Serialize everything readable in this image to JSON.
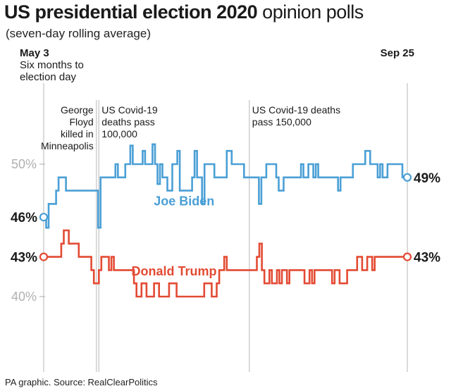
{
  "title": {
    "bold": "US presidential election 2020",
    "light": "opinion polls"
  },
  "subtitle": "(seven-day rolling average)",
  "source": "PA graphic. Source: RealClearPolitics",
  "colors": {
    "biden": "#4a9fd5",
    "trump": "#e34a33",
    "gridline": "#cfcfcf",
    "tick": "#aaaaaa"
  },
  "chart_data": {
    "type": "line",
    "x_domain": [
      0,
      145
    ],
    "ylim": [
      36,
      55
    ],
    "y_ticks": [
      {
        "value": 40,
        "label": "40%"
      },
      {
        "value": 50,
        "label": "50%"
      }
    ],
    "date_markers": [
      {
        "x": 0,
        "lines": [
          "May 3",
          "Six months to",
          "election day"
        ]
      },
      {
        "x": 145,
        "lines": [
          "Sep 25"
        ]
      }
    ],
    "annotations": [
      {
        "x": 21,
        "anchor": "end",
        "lines": [
          "George",
          "Floyd",
          "killed in",
          "Minneapolis"
        ]
      },
      {
        "x": 22,
        "anchor": "start",
        "lines": [
          "US Covid-19",
          "deaths pass",
          "100,000"
        ]
      },
      {
        "x": 82,
        "anchor": "start",
        "lines": [
          "US Covid-19 deaths",
          "pass 150,000"
        ]
      }
    ],
    "series": [
      {
        "name": "Joe Biden",
        "label_x": 56,
        "label_y": 46.9,
        "start_label": "46%",
        "end_label": "49%",
        "values": [
          46,
          45.2,
          47,
          47,
          47,
          48,
          49,
          49,
          49,
          48,
          48,
          48,
          48,
          48,
          48,
          48,
          48,
          48,
          48,
          48,
          48,
          48,
          45.2,
          49,
          49,
          49,
          49,
          49,
          49,
          50,
          49,
          49,
          49,
          50,
          50,
          51.4,
          50,
          50,
          50,
          50,
          51,
          50,
          50,
          50,
          51.5,
          50,
          48.5,
          50,
          49,
          49,
          48,
          48,
          50,
          50,
          51,
          48,
          48,
          48,
          48,
          48,
          49,
          51,
          49,
          49,
          47,
          50,
          50,
          50,
          50,
          49,
          49,
          49,
          49,
          49,
          51,
          51,
          50,
          50,
          50,
          50,
          50,
          49,
          49,
          49,
          49,
          49,
          49,
          47,
          49,
          49,
          50,
          50,
          50,
          50,
          49,
          48,
          48,
          49,
          49,
          49,
          49,
          49,
          49,
          49,
          50,
          49,
          49,
          50,
          50,
          49,
          50,
          49,
          49,
          49,
          49,
          49,
          49,
          49,
          49,
          48,
          49,
          49,
          49,
          49,
          49,
          50,
          50,
          50,
          50,
          50,
          51,
          51,
          50,
          50,
          50,
          49,
          50,
          49,
          49,
          50,
          50,
          50,
          50,
          50,
          50,
          49,
          49,
          49
        ]
      },
      {
        "name": "Donald Trump",
        "label_x": 52,
        "label_y": 41.6,
        "start_label": "43%",
        "end_label": "43%",
        "values": [
          43,
          43,
          43,
          43,
          43,
          43,
          43,
          44,
          45,
          45,
          44,
          44,
          44,
          44,
          43,
          43,
          43,
          43,
          43,
          42,
          41,
          41,
          42,
          43,
          43,
          43,
          42,
          43,
          42,
          42,
          42,
          42,
          42,
          42,
          42,
          42,
          41,
          40,
          40,
          41,
          41,
          40,
          40,
          40,
          41,
          41,
          40,
          40,
          40,
          40,
          41,
          41,
          41,
          40,
          40,
          40,
          40,
          40,
          40,
          40,
          40,
          40,
          40,
          40,
          41,
          41,
          41,
          40,
          40,
          41,
          42,
          42,
          43,
          42,
          42,
          42,
          42,
          42,
          42,
          42,
          42,
          42,
          42,
          42,
          42,
          43,
          44,
          42,
          41,
          41,
          42,
          41,
          41,
          42,
          41,
          42,
          42,
          41,
          42,
          42,
          42,
          42,
          42,
          42,
          41,
          41,
          42,
          41,
          42,
          42,
          42,
          42,
          42,
          42,
          42,
          41,
          42,
          42,
          41,
          41,
          41,
          42,
          42,
          42,
          42,
          43,
          43,
          42,
          42,
          43,
          43,
          42,
          43,
          43,
          43,
          43,
          43,
          43,
          43,
          43,
          43,
          43,
          43,
          43,
          43,
          43
        ]
      }
    ]
  }
}
